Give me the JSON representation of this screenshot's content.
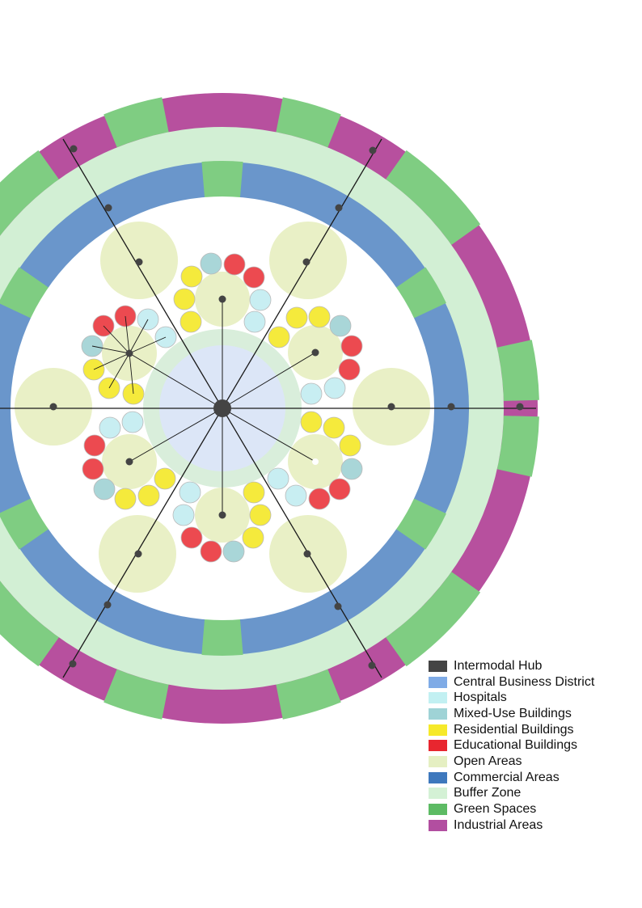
{
  "colors": {
    "hub": "#444444",
    "cbd": "#dce6f7",
    "cbd_ring": "#d9eedb",
    "hospital": "#c8eef2",
    "mixed_use": "#a9d6d8",
    "residential": "#f5ea3c",
    "educational": "#ec4a50",
    "open": "#e9f0c6",
    "commercial": "#6a96cb",
    "buffer": "#d2efd4",
    "green": "#7fcd82",
    "industrial": "#b7509e",
    "spoke": "#1a1a1a"
  },
  "legend": [
    {
      "label": "Intermodal Hub",
      "color": "#444444",
      "icon": "square"
    },
    {
      "label": "Central Business District",
      "color": "#7fabe6",
      "icon": "square"
    },
    {
      "label": "Hospitals",
      "color": "#c2f0f2",
      "icon": "square"
    },
    {
      "label": "Mixed-Use Buildings",
      "color": "#9fd3d6",
      "icon": "square"
    },
    {
      "label": "Residential Buildings",
      "color": "#f6e92a",
      "icon": "square"
    },
    {
      "label": "Educational Buildings",
      "color": "#e8262f",
      "icon": "square"
    },
    {
      "label": "Open Areas",
      "color": "#e5efc2",
      "icon": "square"
    },
    {
      "label": "Commercial Areas",
      "color": "#3e78bd",
      "icon": "square"
    },
    {
      "label": "Buffer Zone",
      "color": "#d4f1d5",
      "icon": "square"
    },
    {
      "label": "Green Spaces",
      "color": "#5dbb64",
      "icon": "square"
    },
    {
      "label": "Industrial Areas",
      "color": "#b24ea0",
      "icon": "square"
    }
  ]
}
